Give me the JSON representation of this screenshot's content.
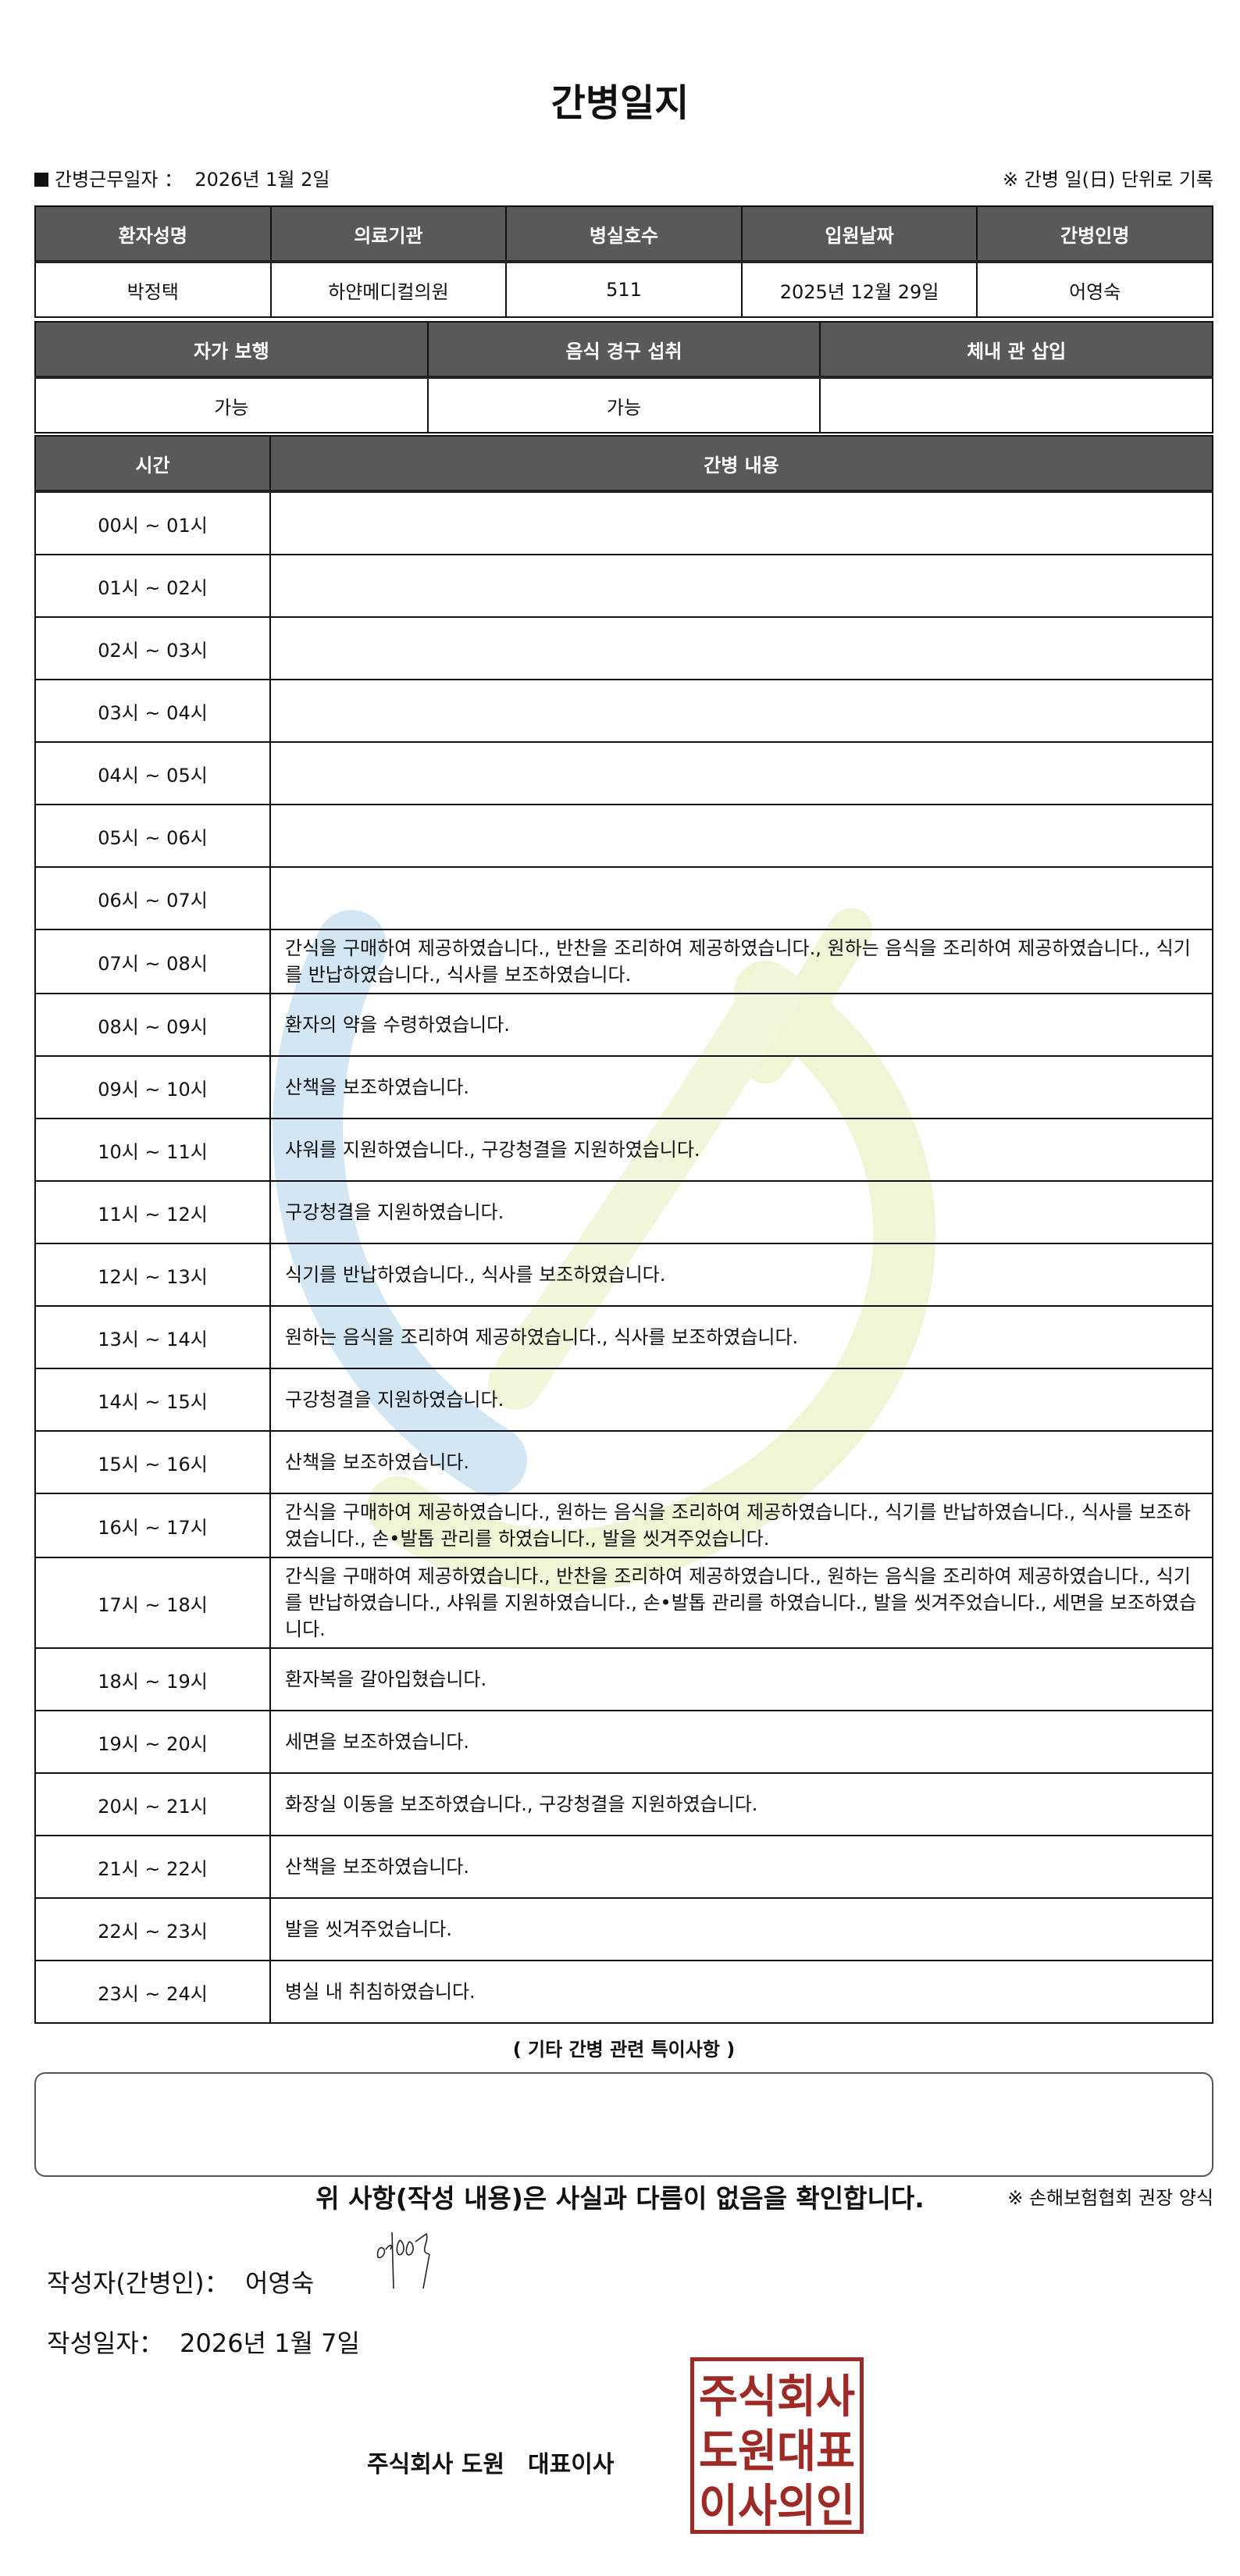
{
  "title": "간병일지",
  "info": {
    "work_date_label": "간병근무일자 ：",
    "work_date": "2026년 1월 2일",
    "record_note": "※ 간병 일(日) 단위로 기록"
  },
  "patient_table": {
    "headers": [
      "환자성명",
      "의료기관",
      "병실호수",
      "입원날짜",
      "간병인명"
    ],
    "values": [
      "박정택",
      "하얀메디컬의원",
      "511",
      "2025년 12월 29일",
      "어영숙"
    ]
  },
  "status_table": {
    "headers": [
      "자가 보행",
      "음식 경구 섭취",
      "체내 관 삽입"
    ],
    "values": [
      "가능",
      "가능",
      ""
    ]
  },
  "care_log": {
    "headers": [
      "시간",
      "간병 내용"
    ],
    "rows": [
      {
        "time": "00시 ~ 01시",
        "content": ""
      },
      {
        "time": "01시 ~ 02시",
        "content": ""
      },
      {
        "time": "02시 ~ 03시",
        "content": ""
      },
      {
        "time": "03시 ~ 04시",
        "content": ""
      },
      {
        "time": "04시 ~ 05시",
        "content": ""
      },
      {
        "time": "05시 ~ 06시",
        "content": ""
      },
      {
        "time": "06시 ~ 07시",
        "content": ""
      },
      {
        "time": "07시 ~ 08시",
        "content": "간식을 구매하여 제공하였습니다., 반찬을 조리하여 제공하였습니다., 원하는 음식을 조리하여 제공하였습니다., 식기를 반납하였습니다., 식사를 보조하였습니다."
      },
      {
        "time": "08시 ~ 09시",
        "content": "환자의 약을 수령하였습니다."
      },
      {
        "time": "09시 ~ 10시",
        "content": "산책을 보조하였습니다."
      },
      {
        "time": "10시 ~ 11시",
        "content": "샤워를 지원하였습니다., 구강청결을 지원하였습니다."
      },
      {
        "time": "11시 ~ 12시",
        "content": "구강청결을 지원하였습니다."
      },
      {
        "time": "12시 ~ 13시",
        "content": "식기를 반납하였습니다., 식사를 보조하였습니다."
      },
      {
        "time": "13시 ~ 14시",
        "content": "원하는 음식을 조리하여 제공하였습니다., 식사를 보조하였습니다."
      },
      {
        "time": "14시 ~ 15시",
        "content": "구강청결을 지원하였습니다."
      },
      {
        "time": "15시 ~ 16시",
        "content": "산책을 보조하였습니다."
      },
      {
        "time": "16시 ~ 17시",
        "content": "간식을 구매하여 제공하였습니다., 원하는 음식을 조리하여 제공하였습니다., 식기를 반납하였습니다., 식사를 보조하였습니다., 손•발톱 관리를 하였습니다., 발을 씻겨주었습니다."
      },
      {
        "time": "17시 ~ 18시",
        "content": "간식을 구매하여 제공하였습니다., 반찬을 조리하여 제공하였습니다., 원하는 음식을 조리하여 제공하였습니다., 식기를 반납하였습니다., 샤워를 지원하였습니다., 손•발톱 관리를 하였습니다., 발을 씻겨주었습니다., 세면을 보조하였습니다."
      },
      {
        "time": "18시 ~ 19시",
        "content": "환자복을 갈아입혔습니다."
      },
      {
        "time": "19시 ~ 20시",
        "content": "세면을 보조하였습니다."
      },
      {
        "time": "20시 ~ 21시",
        "content": "화장실 이동을 보조하였습니다., 구강청결을 지원하였습니다."
      },
      {
        "time": "21시 ~ 22시",
        "content": "산책을 보조하였습니다."
      },
      {
        "time": "22시 ~ 23시",
        "content": "발을 씻겨주었습니다."
      },
      {
        "time": "23시 ~ 24시",
        "content": "병실 내 취침하였습니다."
      }
    ]
  },
  "notes": {
    "title": "( 기타 간병 관련 특이사항 )",
    "content": ""
  },
  "form_note": "※ 손해보험협회 권장 양식",
  "confirmation": "위 사항(작성 내용)은 사실과 다름이 없음을 확인합니다.",
  "writer": {
    "label": "작성자(간병인)：",
    "name": "어영숙"
  },
  "written_date": {
    "label": "작성일자：",
    "value": "2026년 1월 7일"
  },
  "company": "주식회사 도원　대표이사",
  "stamp_text": "주식회사도원대표이사의인",
  "colors": {
    "header_bg": "#595959",
    "stamp_red": "#9e2a26",
    "watermark_blue": "#cfe3f2",
    "watermark_yellow": "#f1f3cf"
  }
}
